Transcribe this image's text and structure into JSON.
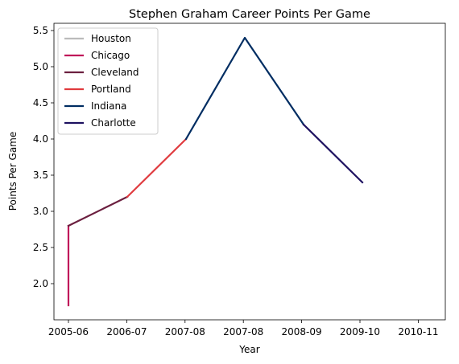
{
  "chart_data": {
    "type": "line",
    "title": "Stephen Graham  Career Points Per Game",
    "xlabel": "Year",
    "ylabel": "Points Per Game",
    "x_ticks": [
      "2005-06",
      "2006-07",
      "2007-08",
      "2007-08",
      "2008-09",
      "2009-10",
      "2010-11"
    ],
    "ylim": [
      1.5,
      5.6
    ],
    "y_ticks": [
      "2.0",
      "2.5",
      "3.0",
      "3.5",
      "4.0",
      "4.5",
      "5.0",
      "5.5"
    ],
    "legend_position": "top-left",
    "grid": false,
    "series": [
      {
        "name": "Houston",
        "color": "#bbbbbb",
        "points": []
      },
      {
        "name": "Chicago",
        "color": "#c0155a",
        "points": [
          {
            "x": 0.0,
            "y": 1.7
          },
          {
            "x": 0.0,
            "y": 2.8
          }
        ]
      },
      {
        "name": "Cleveland",
        "color": "#6c2040",
        "points": [
          {
            "x": 0.0,
            "y": 2.8
          },
          {
            "x": 1.25,
            "y": 3.2
          }
        ]
      },
      {
        "name": "Portland",
        "color": "#e03a3e",
        "points": [
          {
            "x": 1.25,
            "y": 3.2
          },
          {
            "x": 2.5,
            "y": 4.0
          }
        ]
      },
      {
        "name": "Indiana",
        "color": "#002d62",
        "points": [
          {
            "x": 2.5,
            "y": 4.0
          },
          {
            "x": 3.75,
            "y": 5.4
          },
          {
            "x": 5.0,
            "y": 4.2
          }
        ]
      },
      {
        "name": "Charlotte",
        "color": "#1d1160",
        "points": [
          {
            "x": 5.0,
            "y": 4.2
          },
          {
            "x": 6.25,
            "y": 3.4
          }
        ]
      }
    ]
  }
}
